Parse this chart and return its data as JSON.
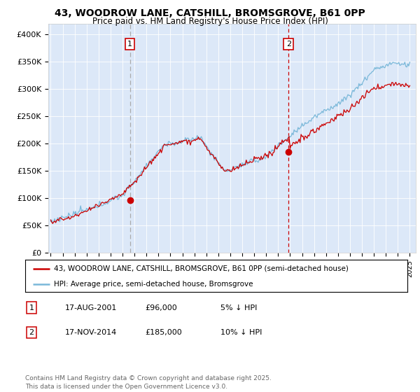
{
  "title_line1": "43, WOODROW LANE, CATSHILL, BROMSGROVE, B61 0PP",
  "title_line2": "Price paid vs. HM Land Registry's House Price Index (HPI)",
  "plot_bg_color": "#dce8f8",
  "ylim": [
    0,
    420000
  ],
  "yticks": [
    0,
    50000,
    100000,
    150000,
    200000,
    250000,
    300000,
    350000,
    400000
  ],
  "ytick_labels": [
    "£0",
    "£50K",
    "£100K",
    "£150K",
    "£200K",
    "£250K",
    "£300K",
    "£350K",
    "£400K"
  ],
  "sale1": {
    "date_num": 2001.62,
    "price": 96000,
    "label": "1",
    "date_str": "17-AUG-2001",
    "price_str": "£96,000",
    "note": "5% ↓ HPI"
  },
  "sale2": {
    "date_num": 2014.88,
    "price": 185000,
    "label": "2",
    "date_str": "17-NOV-2014",
    "price_str": "£185,000",
    "note": "10% ↓ HPI"
  },
  "legend_entry1": "43, WOODROW LANE, CATSHILL, BROMSGROVE, B61 0PP (semi-detached house)",
  "legend_entry2": "HPI: Average price, semi-detached house, Bromsgrove",
  "footnote": "Contains HM Land Registry data © Crown copyright and database right 2025.\nThis data is licensed under the Open Government Licence v3.0.",
  "hpi_color": "#7ab8d9",
  "price_color": "#cc0000",
  "vline1_color": "#999999",
  "vline2_color": "#cc0000",
  "xlabel_years": [
    1995,
    1996,
    1997,
    1998,
    1999,
    2000,
    2001,
    2002,
    2003,
    2004,
    2005,
    2006,
    2007,
    2008,
    2009,
    2010,
    2011,
    2012,
    2013,
    2014,
    2015,
    2016,
    2017,
    2018,
    2019,
    2020,
    2021,
    2022,
    2023,
    2024,
    2025
  ]
}
